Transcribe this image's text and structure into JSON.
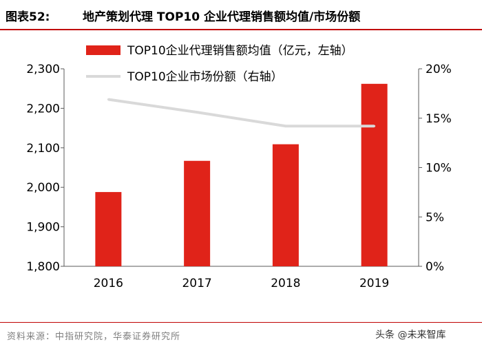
{
  "header": {
    "fig_label": "图表52:",
    "title": "地产策划代理 TOP10 企业代理销售额均值/市场份额"
  },
  "chart_data": {
    "type": "bar",
    "categories": [
      "2016",
      "2017",
      "2018",
      "2019"
    ],
    "series": [
      {
        "name": "TOP10企业代理销售额均值（亿元，左轴）",
        "type": "bar",
        "axis": "left",
        "values": [
          1988,
          2067,
          2109,
          2262
        ],
        "color": "#e02319"
      },
      {
        "name": "TOP10企业市场份额（右轴）",
        "type": "line",
        "axis": "right",
        "values": [
          0.169,
          0.156,
          0.142,
          0.142
        ],
        "color": "#d9d9d9"
      }
    ],
    "left_axis": {
      "ylim": [
        1800,
        2300
      ],
      "ticks": [
        "1,800",
        "1,900",
        "2,000",
        "2,100",
        "2,200",
        "2,300"
      ]
    },
    "right_axis": {
      "ylim": [
        0,
        0.2
      ],
      "ticks": [
        "0%",
        "5%",
        "10%",
        "15%",
        "20%"
      ]
    },
    "legend_placement": "top",
    "grid": false
  },
  "footer": {
    "source": "资料来源：中指研究院，华泰证券研究所",
    "watermark": "头条 @未来智库"
  }
}
